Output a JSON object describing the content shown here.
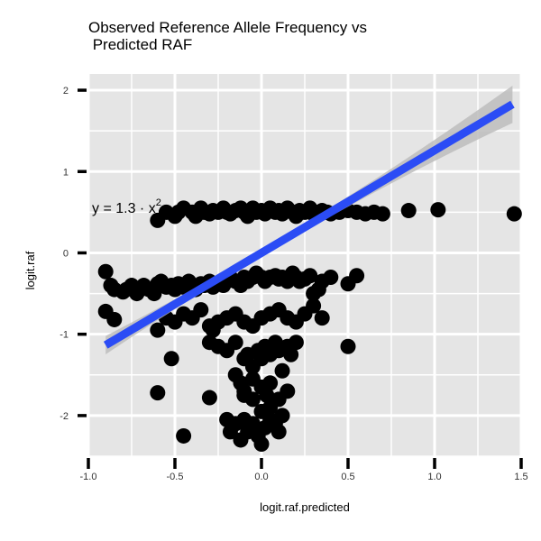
{
  "chart_data": {
    "type": "scatter",
    "title_lines": [
      "Observed Reference Allele Frequency vs",
      " Predicted RAF"
    ],
    "xlabel": "logit.raf.predicted",
    "ylabel": "logit.raf",
    "xlim": [
      -1.0,
      1.5
    ],
    "ylim": [
      -2.5,
      2.2
    ],
    "x_ticks": [
      -1.0,
      -0.5,
      0.0,
      0.5,
      1.0,
      1.5
    ],
    "x_tick_labels": [
      "-1.0",
      "-0.5",
      "0.0",
      "0.5",
      "1.0",
      "1.5"
    ],
    "y_ticks": [
      -2,
      -1,
      0,
      1,
      2
    ],
    "y_tick_labels": [
      "-2",
      "-1",
      "0",
      "1",
      "2"
    ],
    "grid": true,
    "equation": {
      "prefix": "y = 1.3 · x",
      "superscript": "2"
    },
    "regression": {
      "x_range": [
        -0.9,
        1.45
      ],
      "slope": 1.26,
      "intercept": 0.0
    },
    "colors": {
      "panel_background": "#e5e5e5",
      "grid": "#ffffff",
      "points": "#000000",
      "fit_line": "#2b4cf5",
      "confidence_band": "#bdbdbd"
    },
    "points": {
      "x": [
        -0.6,
        -0.55,
        -0.5,
        -0.48,
        -0.45,
        -0.4,
        -0.38,
        -0.35,
        -0.33,
        -0.3,
        -0.28,
        -0.25,
        -0.22,
        -0.2,
        -0.18,
        -0.15,
        -0.12,
        -0.1,
        -0.08,
        -0.05,
        -0.03,
        0.0,
        0.02,
        0.05,
        0.08,
        0.1,
        0.12,
        0.15,
        0.18,
        0.2,
        0.22,
        0.25,
        0.28,
        0.3,
        0.33,
        0.35,
        0.38,
        0.4,
        0.45,
        0.5,
        0.55,
        0.6,
        0.65,
        0.7,
        0.85,
        1.02,
        1.46,
        -0.9,
        -0.87,
        -0.85,
        -0.8,
        -0.78,
        -0.75,
        -0.72,
        -0.7,
        -0.68,
        -0.65,
        -0.62,
        -0.6,
        -0.58,
        -0.55,
        -0.52,
        -0.5,
        -0.48,
        -0.45,
        -0.42,
        -0.4,
        -0.38,
        -0.35,
        -0.33,
        -0.3,
        -0.28,
        -0.25,
        -0.22,
        -0.2,
        -0.18,
        -0.15,
        -0.12,
        -0.1,
        -0.08,
        -0.05,
        -0.03,
        0.0,
        0.02,
        0.05,
        0.08,
        0.1,
        0.12,
        0.15,
        0.18,
        0.2,
        0.22,
        0.25,
        0.28,
        0.3,
        0.33,
        0.35,
        0.4,
        0.5,
        0.55,
        -0.9,
        -0.85,
        -0.6,
        -0.55,
        -0.5,
        -0.45,
        -0.4,
        -0.35,
        -0.3,
        -0.28,
        -0.25,
        -0.2,
        -0.15,
        -0.1,
        -0.05,
        0.0,
        0.05,
        0.1,
        0.15,
        0.2,
        0.25,
        0.3,
        0.35,
        0.5,
        -0.6,
        -0.52,
        -0.3,
        -0.25,
        -0.2,
        -0.15,
        -0.1,
        -0.08,
        -0.05,
        -0.02,
        0.0,
        0.02,
        0.05,
        0.08,
        0.1,
        0.15,
        0.2,
        -0.45,
        -0.3,
        -0.15,
        -0.12,
        -0.1,
        -0.05,
        0.0,
        0.03,
        0.05,
        0.1,
        0.15,
        0.17,
        0.12,
        0.05,
        -0.05,
        -0.1,
        0.0,
        -0.2,
        -0.18,
        -0.15,
        -0.12,
        -0.1,
        -0.08,
        -0.05,
        -0.02,
        0.0,
        0.02,
        0.05,
        0.08,
        0.1,
        0.12
      ],
      "y": [
        0.4,
        0.5,
        0.45,
        0.5,
        0.55,
        0.5,
        0.45,
        0.55,
        0.5,
        0.48,
        0.52,
        0.5,
        0.55,
        0.5,
        0.48,
        0.52,
        0.55,
        0.5,
        0.45,
        0.55,
        0.5,
        0.52,
        0.48,
        0.55,
        0.5,
        0.52,
        0.48,
        0.55,
        0.5,
        0.45,
        0.52,
        0.5,
        0.55,
        0.48,
        0.5,
        0.52,
        0.5,
        0.48,
        0.5,
        0.52,
        0.5,
        0.48,
        0.5,
        0.48,
        0.52,
        0.53,
        0.48,
        -0.23,
        -0.4,
        -0.45,
        -0.48,
        -0.45,
        -0.4,
        -0.5,
        -0.45,
        -0.4,
        -0.45,
        -0.5,
        -0.38,
        -0.35,
        -0.42,
        -0.4,
        -0.45,
        -0.38,
        -0.42,
        -0.35,
        -0.4,
        -0.45,
        -0.38,
        -0.4,
        -0.35,
        -0.42,
        -0.38,
        -0.4,
        -0.35,
        -0.3,
        -0.35,
        -0.4,
        -0.3,
        -0.35,
        -0.3,
        -0.25,
        -0.3,
        -0.35,
        -0.3,
        -0.28,
        -0.32,
        -0.3,
        -0.35,
        -0.25,
        -0.3,
        -0.35,
        -0.32,
        -0.28,
        -0.5,
        -0.45,
        -0.35,
        -0.3,
        -0.38,
        -0.28,
        -0.72,
        -0.82,
        -0.95,
        -0.8,
        -0.85,
        -0.75,
        -0.8,
        -0.7,
        -0.9,
        -0.95,
        -0.85,
        -0.8,
        -0.75,
        -0.85,
        -0.9,
        -0.8,
        -0.75,
        -0.7,
        -0.8,
        -0.85,
        -0.75,
        -0.65,
        -0.8,
        -1.15,
        -1.72,
        -1.3,
        -1.1,
        -1.15,
        -1.2,
        -1.1,
        -1.3,
        -1.25,
        -1.4,
        -1.2,
        -1.3,
        -1.15,
        -1.25,
        -1.1,
        -1.2,
        -1.15,
        -1.1,
        -2.25,
        -1.78,
        -1.5,
        -1.6,
        -1.7,
        -1.55,
        -1.65,
        -1.75,
        -1.6,
        -1.8,
        -1.7,
        -1.25,
        -1.45,
        -1.9,
        -1.8,
        -1.75,
        -1.95,
        -2.05,
        -2.2,
        -2.1,
        -2.3,
        -2.05,
        -2.2,
        -2.1,
        -2.25,
        -2.35,
        -2.15,
        -2.05,
        -2.1,
        -2.2,
        -2.0
      ]
    }
  }
}
